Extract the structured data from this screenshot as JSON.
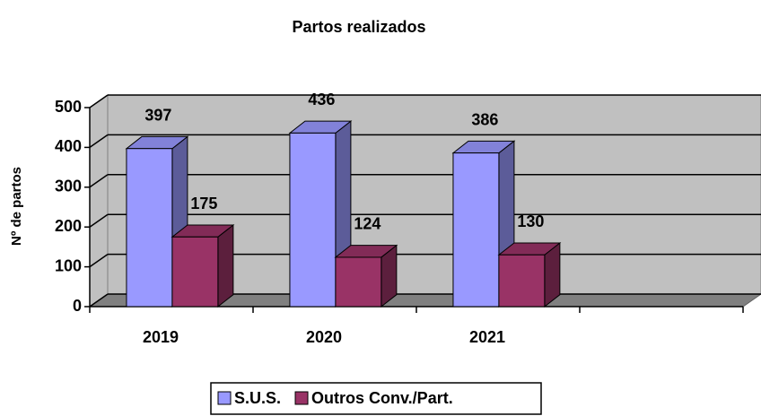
{
  "chart_data": {
    "type": "bar3d",
    "title": "Partos realizados",
    "y_label": "Nº de partos",
    "categories": [
      "2019",
      "2020",
      "2021",
      null
    ],
    "series": [
      {
        "name": "S.U.S.",
        "color": "#9999ff",
        "values": [
          397,
          436,
          386,
          null
        ]
      },
      {
        "name": "Outros Conv./Part.",
        "color": "#993366",
        "values": [
          175,
          124,
          130,
          null
        ]
      }
    ],
    "ylim": [
      0,
      500
    ],
    "yticks": [
      0,
      100,
      200,
      300,
      400,
      500
    ],
    "grid": true,
    "legend": "bottom"
  }
}
